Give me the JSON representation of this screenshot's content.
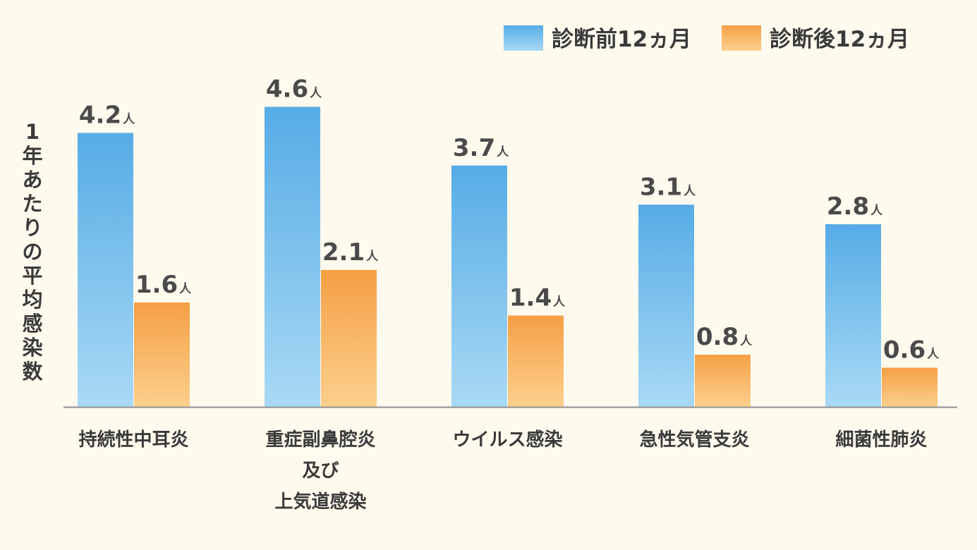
{
  "chart_data": {
    "type": "bar",
    "categories": [
      [
        "持続性中耳炎"
      ],
      [
        "重症副鼻腔炎",
        "及び",
        "上気道感染"
      ],
      [
        "ウイルス感染"
      ],
      [
        "急性気管支炎"
      ],
      [
        "細菌性肺炎"
      ]
    ],
    "series": [
      {
        "name": "診断前12ヵ月",
        "values": [
          4.2,
          4.6,
          3.7,
          3.1,
          2.8
        ],
        "value_labels": [
          "4.2",
          "4.6",
          "3.7",
          "3.1",
          "2.8"
        ],
        "color": "#5aaee6"
      },
      {
        "name": "診断後12ヵ月",
        "values": [
          1.6,
          2.1,
          1.4,
          0.8,
          0.6
        ],
        "value_labels": [
          "1.6",
          "2.1",
          "1.4",
          "0.8",
          "0.6"
        ],
        "color": "#f5a24b"
      }
    ],
    "value_unit": "人",
    "ylabel": "1年あたりの平均感染数",
    "ylim": [
      0,
      5
    ],
    "legend_position": "top-right",
    "grid": false
  }
}
